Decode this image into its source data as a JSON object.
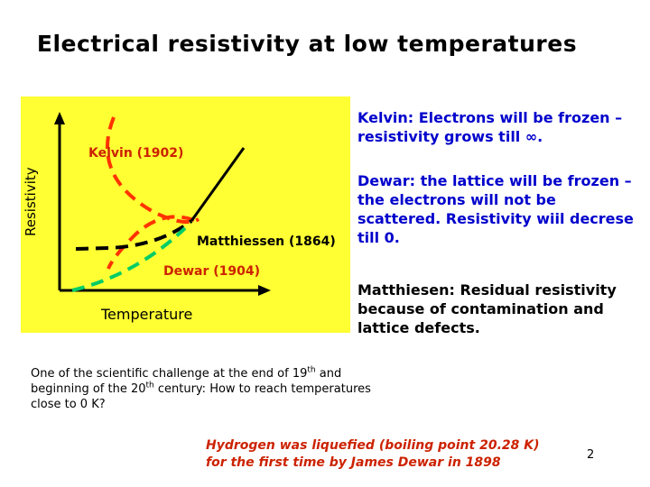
{
  "title": "Electrical resistivity at low temperatures",
  "diagram": {
    "y_axis_label": "Resistivity",
    "x_axis_label": "Temperature",
    "curves": {
      "kelvin": {
        "label": "Kelvin (1902)",
        "color": "#ff3300"
      },
      "matthiessen": {
        "label": "Matthiessen (1864)",
        "color": "#000000"
      },
      "dewar": {
        "label": "Dewar (1904)",
        "color": "#00cc66"
      }
    },
    "panel_color": "#ffff33"
  },
  "notes": {
    "kelvin": "Kelvin: Electrons will be frozen – resistivity grows till ∞.",
    "dewar": "Dewar: the lattice will be frozen – the electrons will not be scattered. Resistivity wiil decrese till 0.",
    "matthiessen": "Matthiesen: Residual resistivity because of contamination and lattice defects."
  },
  "challenge": {
    "part1": "One of the scientific challenge at the end of 19",
    "sup1": "th",
    "part2": " and beginning of the 20",
    "sup2": "th",
    "part3": " century: How to reach temperatures close to 0 K?"
  },
  "hydrogen_note": "Hydrogen was liquefied (boiling point 20.28 K) for the first time by James Dewar in 1898",
  "page_number": "2"
}
